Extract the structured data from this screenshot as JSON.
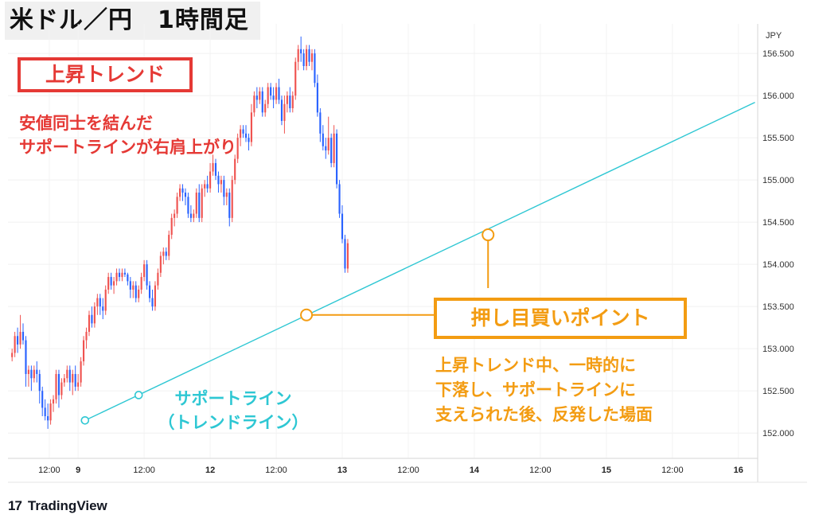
{
  "header": {
    "title": "米ドル／円　1時間足"
  },
  "annotations": {
    "trend_label": "上昇トレンド",
    "trend_desc": [
      "安値同士を結んだ",
      "サポートラインが右肩上がり"
    ],
    "point_label": "押し目買いポイント",
    "point_desc": [
      "上昇トレンド中、一時的に",
      "下落し、サポートラインに",
      "支えられた後、反発した場面"
    ],
    "support_label": [
      "サポートライン",
      "（トレンドライン）"
    ]
  },
  "branding": {
    "logo_text": "TradingView",
    "logo_mark": "17"
  },
  "colors": {
    "up": "#ef5350",
    "down": "#2962ff",
    "support": "#2ec7d3",
    "annotation_red": "#e53935",
    "annotation_orange": "#f39c12"
  },
  "chart_data": {
    "type": "candlestick",
    "title": "米ドル／円　1時間足",
    "currency_label": "JPY",
    "y_ticks": [
      152.0,
      152.5,
      153.0,
      153.5,
      154.0,
      154.5,
      155.0,
      155.5,
      156.0,
      156.5
    ],
    "y_tick_labels": [
      "152.000",
      "152.500",
      "153.000",
      "153.500",
      "154.000",
      "154.500",
      "155.000",
      "155.500",
      "156.000",
      "156.500"
    ],
    "ylim": [
      151.7,
      156.85
    ],
    "x_ticks": [
      {
        "label": "12:00",
        "t": 13.5
      },
      {
        "label": "9",
        "t": 24
      },
      {
        "label": "12:00",
        "t": 48
      },
      {
        "label": "12",
        "t": 72
      },
      {
        "label": "12:00",
        "t": 96
      },
      {
        "label": "13",
        "t": 120
      },
      {
        "label": "12:00",
        "t": 144
      },
      {
        "label": "14",
        "t": 168
      },
      {
        "label": "12:00",
        "t": 192
      },
      {
        "label": "15",
        "t": 216
      },
      {
        "label": "12:00",
        "t": 240
      },
      {
        "label": "16",
        "t": 264
      }
    ],
    "bold_ticks": [
      "9",
      "12",
      "13",
      "14",
      "15",
      "16"
    ],
    "xlim": [
      -1.5,
      271
    ],
    "support_line": {
      "x1": 26.5,
      "y1": 152.15,
      "x2": 270,
      "y2": 155.92
    },
    "markers": [
      {
        "t": 26.5,
        "price": 152.15
      },
      {
        "t": 46,
        "price": 152.45
      },
      {
        "t": 107,
        "price": 153.4
      },
      {
        "t": 173,
        "price": 154.35
      }
    ],
    "candles": [
      [
        152.9,
        153.0,
        152.85,
        152.95
      ],
      [
        152.95,
        153.2,
        152.9,
        153.15
      ],
      [
        153.15,
        153.25,
        152.95,
        153.05
      ],
      [
        153.05,
        153.4,
        153.0,
        153.2
      ],
      [
        153.2,
        153.3,
        153.05,
        153.1
      ],
      [
        153.1,
        153.15,
        152.55,
        152.7
      ],
      [
        152.7,
        152.8,
        152.55,
        152.75
      ],
      [
        152.75,
        152.8,
        152.5,
        152.65
      ],
      [
        152.65,
        152.8,
        152.6,
        152.75
      ],
      [
        152.75,
        152.85,
        152.6,
        152.7
      ],
      [
        152.7,
        152.75,
        152.35,
        152.5
      ],
      [
        152.5,
        152.55,
        152.2,
        152.3
      ],
      [
        152.3,
        152.4,
        152.15,
        152.2
      ],
      [
        152.2,
        152.35,
        152.05,
        152.15
      ],
      [
        152.15,
        152.4,
        152.1,
        152.35
      ],
      [
        152.35,
        152.45,
        152.25,
        152.4
      ],
      [
        152.4,
        152.75,
        152.35,
        152.7
      ],
      [
        152.7,
        152.75,
        152.3,
        152.45
      ],
      [
        152.45,
        152.65,
        152.4,
        152.6
      ],
      [
        152.6,
        152.7,
        152.55,
        152.65
      ],
      [
        152.65,
        152.8,
        152.6,
        152.75
      ],
      [
        152.75,
        152.8,
        152.5,
        152.6
      ],
      [
        152.6,
        152.75,
        152.45,
        152.7
      ],
      [
        152.7,
        152.8,
        152.5,
        152.55
      ],
      [
        152.55,
        152.7,
        152.5,
        152.6
      ],
      [
        152.6,
        152.9,
        152.55,
        152.85
      ],
      [
        152.85,
        153.15,
        152.8,
        153.1
      ],
      [
        153.1,
        153.25,
        153.0,
        153.2
      ],
      [
        153.2,
        153.45,
        153.15,
        153.4
      ],
      [
        153.4,
        153.5,
        153.25,
        153.3
      ],
      [
        153.3,
        153.55,
        153.25,
        153.5
      ],
      [
        153.5,
        153.65,
        153.4,
        153.6
      ],
      [
        153.6,
        153.65,
        153.4,
        153.5
      ],
      [
        153.5,
        153.6,
        153.35,
        153.45
      ],
      [
        153.45,
        153.75,
        153.4,
        153.7
      ],
      [
        153.7,
        153.9,
        153.65,
        153.85
      ],
      [
        153.85,
        153.9,
        153.7,
        153.75
      ],
      [
        153.75,
        153.85,
        153.65,
        153.8
      ],
      [
        153.8,
        153.95,
        153.75,
        153.9
      ],
      [
        153.9,
        153.95,
        153.8,
        153.85
      ],
      [
        153.85,
        153.95,
        153.8,
        153.9
      ],
      [
        153.9,
        153.95,
        153.85,
        153.88
      ],
      [
        153.88,
        153.9,
        153.75,
        153.8
      ],
      [
        153.8,
        153.85,
        153.6,
        153.7
      ],
      [
        153.7,
        153.8,
        153.6,
        153.75
      ],
      [
        153.75,
        153.8,
        153.55,
        153.6
      ],
      [
        153.6,
        153.75,
        153.55,
        153.7
      ],
      [
        153.7,
        153.9,
        153.65,
        153.85
      ],
      [
        153.85,
        154.05,
        153.8,
        154.0
      ],
      [
        154.0,
        154.05,
        153.7,
        153.75
      ],
      [
        153.75,
        153.8,
        153.55,
        153.6
      ],
      [
        153.6,
        153.7,
        153.45,
        153.5
      ],
      [
        153.5,
        153.8,
        153.45,
        153.75
      ],
      [
        153.75,
        153.95,
        153.7,
        153.9
      ],
      [
        153.9,
        154.15,
        153.85,
        154.1
      ],
      [
        154.1,
        154.2,
        154.0,
        154.15
      ],
      [
        154.15,
        154.2,
        154.05,
        154.1
      ],
      [
        154.1,
        154.4,
        154.05,
        154.35
      ],
      [
        154.35,
        154.6,
        154.3,
        154.55
      ],
      [
        154.55,
        154.65,
        154.45,
        154.6
      ],
      [
        154.6,
        154.85,
        154.55,
        154.8
      ],
      [
        154.8,
        154.95,
        154.75,
        154.9
      ],
      [
        154.9,
        154.95,
        154.75,
        154.85
      ],
      [
        154.85,
        154.9,
        154.7,
        154.8
      ],
      [
        154.8,
        154.85,
        154.55,
        154.6
      ],
      [
        154.6,
        154.7,
        154.5,
        154.55
      ],
      [
        154.55,
        154.65,
        154.5,
        154.6
      ],
      [
        154.6,
        154.9,
        154.55,
        154.85
      ],
      [
        154.85,
        154.95,
        154.5,
        154.55
      ],
      [
        154.55,
        154.95,
        154.5,
        154.9
      ],
      [
        154.9,
        155.0,
        154.8,
        154.95
      ],
      [
        154.95,
        155.05,
        154.85,
        154.9
      ],
      [
        154.9,
        155.2,
        154.85,
        155.1
      ],
      [
        155.1,
        155.3,
        155.05,
        155.2
      ],
      [
        155.2,
        155.25,
        155.0,
        155.05
      ],
      [
        155.05,
        155.1,
        154.85,
        154.95
      ],
      [
        154.95,
        155.05,
        154.85,
        155.0
      ],
      [
        155.0,
        155.05,
        154.7,
        154.8
      ],
      [
        154.8,
        154.9,
        154.7,
        154.85
      ],
      [
        154.85,
        154.9,
        154.45,
        154.55
      ],
      [
        154.55,
        155.05,
        154.5,
        155.0
      ],
      [
        155.0,
        155.3,
        154.95,
        155.25
      ],
      [
        155.25,
        155.55,
        155.2,
        155.5
      ],
      [
        155.5,
        155.65,
        155.4,
        155.6
      ],
      [
        155.6,
        155.65,
        155.5,
        155.55
      ],
      [
        155.55,
        155.65,
        155.45,
        155.5
      ],
      [
        155.5,
        155.55,
        155.35,
        155.45
      ],
      [
        155.45,
        155.9,
        155.4,
        155.8
      ],
      [
        155.8,
        156.05,
        155.75,
        156.0
      ],
      [
        156.0,
        156.1,
        155.85,
        155.95
      ],
      [
        155.95,
        156.1,
        155.9,
        156.05
      ],
      [
        156.05,
        156.1,
        155.75,
        155.8
      ],
      [
        155.8,
        155.95,
        155.75,
        155.9
      ],
      [
        155.9,
        156.15,
        155.85,
        156.1
      ],
      [
        156.1,
        156.15,
        155.95,
        156.0
      ],
      [
        156.0,
        156.1,
        155.85,
        155.95
      ],
      [
        155.95,
        156.15,
        155.9,
        156.1
      ],
      [
        156.1,
        156.2,
        155.9,
        155.95
      ],
      [
        155.95,
        156.0,
        155.65,
        155.7
      ],
      [
        155.7,
        156.0,
        155.55,
        155.9
      ],
      [
        155.9,
        156.05,
        155.8,
        156.0
      ],
      [
        156.0,
        156.1,
        155.8,
        155.85
      ],
      [
        155.85,
        156.05,
        155.8,
        156.0
      ],
      [
        156.0,
        156.45,
        155.95,
        156.4
      ],
      [
        156.4,
        156.6,
        156.3,
        156.55
      ],
      [
        156.55,
        156.7,
        156.4,
        156.5
      ],
      [
        156.5,
        156.55,
        156.3,
        156.35
      ],
      [
        156.35,
        156.6,
        156.3,
        156.55
      ],
      [
        156.55,
        156.6,
        156.35,
        156.4
      ],
      [
        156.4,
        156.55,
        156.3,
        156.5
      ],
      [
        156.5,
        156.55,
        156.1,
        156.15
      ],
      [
        156.15,
        156.25,
        155.75,
        155.8
      ],
      [
        155.8,
        155.85,
        155.45,
        155.55
      ],
      [
        155.55,
        155.65,
        155.35,
        155.4
      ],
      [
        155.4,
        155.5,
        155.25,
        155.35
      ],
      [
        155.35,
        155.75,
        155.3,
        155.5
      ],
      [
        155.5,
        155.55,
        155.15,
        155.2
      ],
      [
        155.2,
        155.65,
        155.15,
        155.55
      ],
      [
        155.55,
        155.6,
        154.9,
        154.95
      ],
      [
        154.95,
        155.0,
        154.55,
        154.6
      ],
      [
        154.6,
        154.7,
        154.25,
        154.3
      ],
      [
        154.3,
        154.35,
        153.9,
        153.95
      ],
      [
        153.95,
        154.3,
        153.9,
        154.25
      ]
    ]
  }
}
